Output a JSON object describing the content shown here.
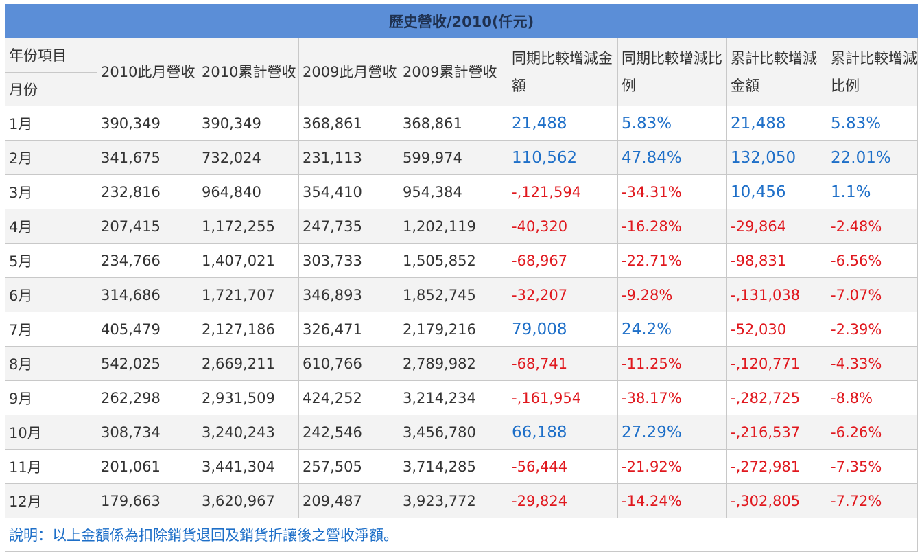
{
  "title": "歷史營收/2010(仟元)",
  "headers": {
    "corner_top": "年份項目",
    "corner_bottom": "月份",
    "columns": [
      "2010此月營收",
      "2010累計營收",
      "2009此月營收",
      "2009累計營收",
      "同期比較增減金額",
      "同期比較增減比例",
      "累計比較增減金額",
      "累計比較增減比例"
    ]
  },
  "rows": [
    {
      "month": "1月",
      "values": [
        "390,349",
        "390,349",
        "368,861",
        "368,861",
        "21,488",
        "5.83%",
        "21,488",
        "5.83%"
      ]
    },
    {
      "month": "2月",
      "values": [
        "341,675",
        "732,024",
        "231,113",
        "599,974",
        "110,562",
        "47.84%",
        "132,050",
        "22.01%"
      ]
    },
    {
      "month": "3月",
      "values": [
        "232,816",
        "964,840",
        "354,410",
        "954,384",
        "-,121,594",
        "-34.31%",
        "10,456",
        "1.1%"
      ]
    },
    {
      "month": "4月",
      "values": [
        "207,415",
        "1,172,255",
        "247,735",
        "1,202,119",
        "-40,320",
        "-16.28%",
        "-29,864",
        "-2.48%"
      ]
    },
    {
      "month": "5月",
      "values": [
        "234,766",
        "1,407,021",
        "303,733",
        "1,505,852",
        "-68,967",
        "-22.71%",
        "-98,831",
        "-6.56%"
      ]
    },
    {
      "month": "6月",
      "values": [
        "314,686",
        "1,721,707",
        "346,893",
        "1,852,745",
        "-32,207",
        "-9.28%",
        "-,131,038",
        "-7.07%"
      ]
    },
    {
      "month": "7月",
      "values": [
        "405,479",
        "2,127,186",
        "326,471",
        "2,179,216",
        "79,008",
        "24.2%",
        "-52,030",
        "-2.39%"
      ]
    },
    {
      "month": "8月",
      "values": [
        "542,025",
        "2,669,211",
        "610,766",
        "2,789,982",
        "-68,741",
        "-11.25%",
        "-,120,771",
        "-4.33%"
      ]
    },
    {
      "month": "9月",
      "values": [
        "262,298",
        "2,931,509",
        "424,252",
        "3,214,234",
        "-,161,954",
        "-38.17%",
        "-,282,725",
        "-8.8%"
      ]
    },
    {
      "month": "10月",
      "values": [
        "308,734",
        "3,240,243",
        "242,546",
        "3,456,780",
        "66,188",
        "27.29%",
        "-,216,537",
        "-6.26%"
      ]
    },
    {
      "month": "11月",
      "values": [
        "201,061",
        "3,441,304",
        "257,505",
        "3,714,285",
        "-56,444",
        "-21.92%",
        "-,272,981",
        "-7.35%"
      ]
    },
    {
      "month": "12月",
      "values": [
        "179,663",
        "3,620,967",
        "209,487",
        "3,923,772",
        "-29,824",
        "-14.24%",
        "-,302,805",
        "-7.72%"
      ]
    }
  ],
  "note": "說明：以上金額係為扣除銷貨退回及銷貨折讓後之營收淨額。",
  "colors": {
    "header_bar": "#5b8ed7",
    "positive": "#1e6fc8",
    "negative": "#e0181e",
    "alt_row": "#f3f3f3",
    "note_text": "#1e6fc8"
  }
}
